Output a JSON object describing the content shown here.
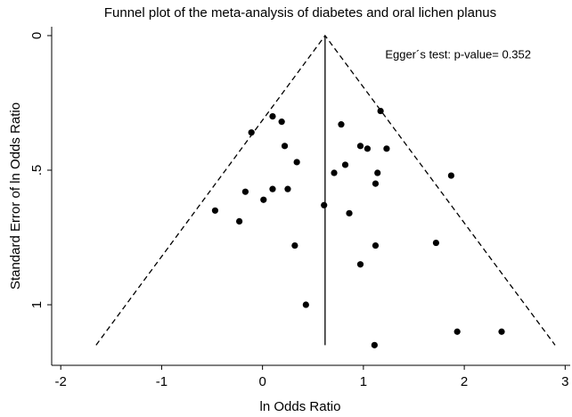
{
  "chart_data": {
    "type": "scatter",
    "title": "Funnel plot of the meta-analysis of diabetes and oral lichen planus",
    "x_label": "ln Odds Ratio",
    "y_label": "Standard Error of ln Odds Ratio",
    "annotation": "Egger´s test: p-value= 0.352",
    "xlim": [
      -2.09,
      3.05
    ],
    "ylim": [
      -0.033,
      1.225
    ],
    "y_reversed": true,
    "xticks": [
      -2,
      -1,
      0,
      1,
      2,
      3
    ],
    "yticks": [
      0,
      {
        "value": 0.5,
        "label": ".5"
      },
      1
    ],
    "color": "#000000",
    "x": [
      -0.11,
      0.1,
      0.19,
      0.22,
      0.34,
      0.1,
      0.25,
      -0.17,
      0.01,
      -0.47,
      -0.23,
      0.32,
      0.43,
      0.61,
      0.78,
      1.17,
      0.97,
      1.04,
      1.23,
      0.82,
      0.71,
      1.14,
      1.12,
      0.86,
      1.87,
      1.72,
      1.12,
      0.97,
      1.93,
      2.37,
      1.11
    ],
    "values": [
      0.36,
      0.3,
      0.32,
      0.41,
      0.47,
      0.57,
      0.57,
      0.58,
      0.61,
      0.65,
      0.69,
      0.78,
      1.0,
      0.63,
      0.33,
      0.28,
      0.41,
      0.42,
      0.42,
      0.48,
      0.51,
      0.51,
      0.55,
      0.66,
      0.52,
      0.77,
      0.78,
      0.85,
      1.1,
      1.1,
      1.15
    ],
    "reference_lines": [
      {
        "style": "dashed",
        "x": [
          -1.65,
          0.62,
          2.9
        ],
        "y": [
          1.15,
          0,
          1.15
        ]
      },
      {
        "style": "solid",
        "x": [
          0.62,
          0.62
        ],
        "y": [
          0,
          1.15
        ]
      }
    ]
  }
}
